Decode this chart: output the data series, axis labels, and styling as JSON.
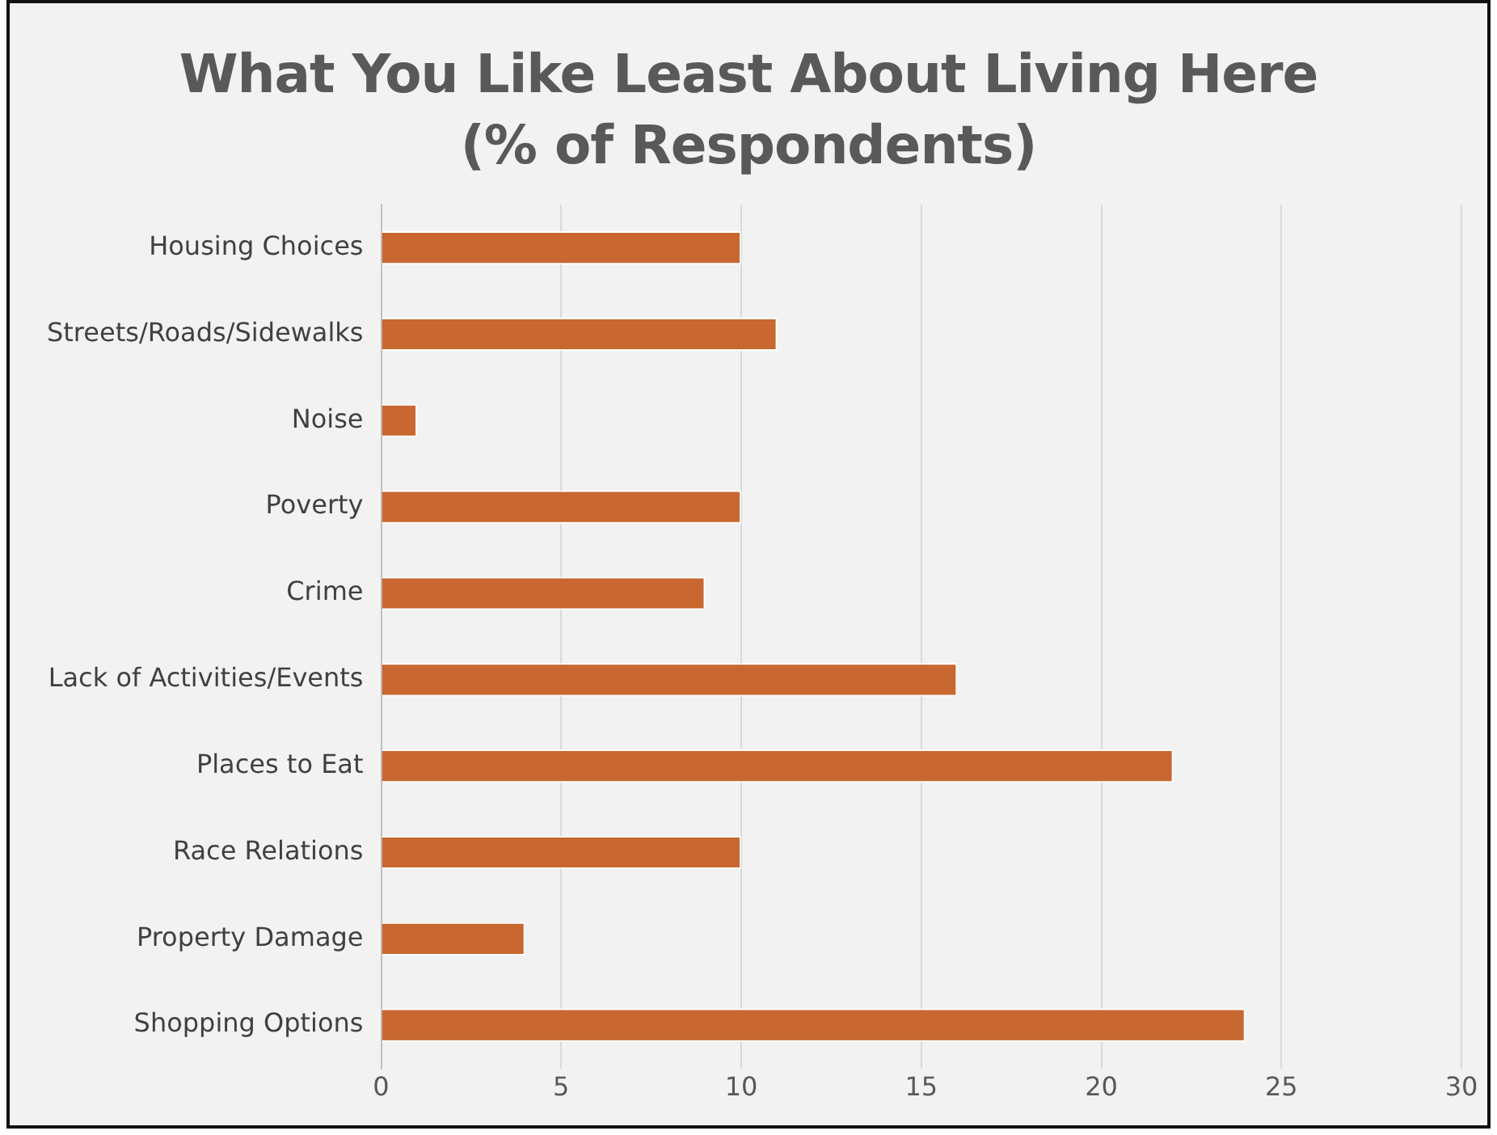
{
  "chart_data": {
    "type": "bar",
    "orientation": "horizontal",
    "title": "What You Like Least About Living Here\n(% of Respondents)",
    "categories": [
      "Housing Choices",
      "Streets/Roads/Sidewalks",
      "Noise",
      "Poverty",
      "Crime",
      "Lack of Activities/Events",
      "Places to Eat",
      "Race Relations",
      "Property Damage",
      "Shopping Options"
    ],
    "values": [
      10,
      11,
      1,
      10,
      9,
      16,
      22,
      10,
      4,
      24
    ],
    "color": "#c8672f",
    "xlim": [
      0,
      30
    ],
    "xticks": [
      0,
      5,
      10,
      15,
      20,
      25,
      30
    ],
    "grid": "x",
    "legend": false
  }
}
